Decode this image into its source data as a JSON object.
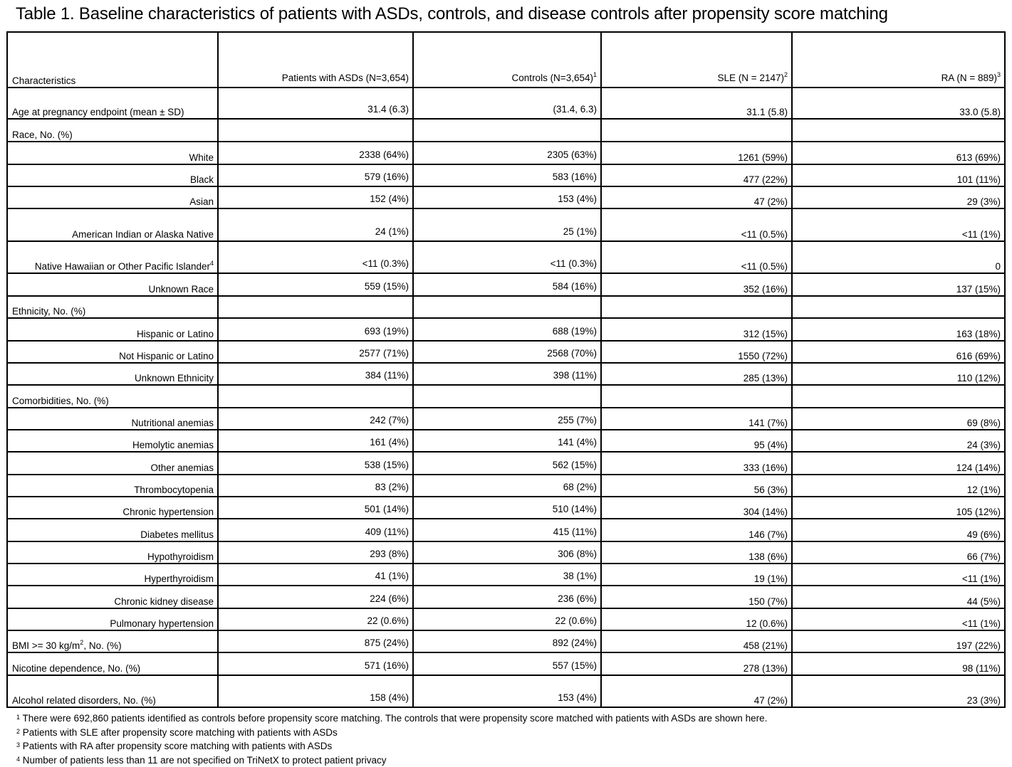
{
  "title": "Table 1. Baseline characteristics of patients with ASDs, controls, and disease controls after propensity score matching",
  "headers": [
    {
      "text": "Characteristics",
      "sup": ""
    },
    {
      "text": "Patients with ASDs (N=3,654)",
      "sup": ""
    },
    {
      "text": "Controls (N=3,654)",
      "sup": "1"
    },
    {
      "text": "SLE (N = 2147)",
      "sup": "2"
    },
    {
      "text": "RA (N = 889)",
      "sup": "3"
    }
  ],
  "rows": [
    {
      "label": "Age at pregnancy endpoint (mean ± SD)",
      "sup": "",
      "post": "",
      "sub": false,
      "values": [
        "31.4 (6.3)",
        "(31.4, 6.3)",
        "31.1 (5.8)",
        "33.0 (5.8)"
      ]
    },
    {
      "label": "Race, No. (%)",
      "sup": "",
      "post": "",
      "sub": false,
      "values": [
        "",
        "",
        "",
        ""
      ]
    },
    {
      "label": "White",
      "sup": "",
      "post": "",
      "sub": true,
      "values": [
        "2338 (64%)",
        "2305 (63%)",
        "1261 (59%)",
        "613 (69%)"
      ]
    },
    {
      "label": "Black",
      "sup": "",
      "post": "",
      "sub": true,
      "values": [
        "579 (16%)",
        "583 (16%)",
        "477 (22%)",
        "101 (11%)"
      ]
    },
    {
      "label": "Asian",
      "sup": "",
      "post": "",
      "sub": true,
      "values": [
        "152 (4%)",
        "153 (4%)",
        "47 (2%)",
        "29 (3%)"
      ]
    },
    {
      "label": "American Indian or Alaska Native",
      "sup": "",
      "post": "",
      "sub": true,
      "values": [
        "24 (1%)",
        "25 (1%)",
        "<11 (0.5%)",
        "<11 (1%)"
      ]
    },
    {
      "label": "Native Hawaiian or Other Pacific Islander",
      "sup": "4",
      "post": "",
      "sub": true,
      "values": [
        "<11 (0.3%)",
        "<11 (0.3%)",
        "<11 (0.5%)",
        "0"
      ]
    },
    {
      "label": "Unknown Race",
      "sup": "",
      "post": "",
      "sub": true,
      "values": [
        "559 (15%)",
        "584 (16%)",
        "352 (16%)",
        "137 (15%)"
      ]
    },
    {
      "label": "Ethnicity, No. (%)",
      "sup": "",
      "post": "",
      "sub": false,
      "values": [
        "",
        "",
        "",
        ""
      ]
    },
    {
      "label": "Hispanic or Latino",
      "sup": "",
      "post": "",
      "sub": true,
      "values": [
        "693 (19%)",
        "688 (19%)",
        "312 (15%)",
        "163 (18%)"
      ]
    },
    {
      "label": "Not Hispanic or Latino",
      "sup": "",
      "post": "",
      "sub": true,
      "values": [
        "2577 (71%)",
        "2568 (70%)",
        "1550 (72%)",
        "616 (69%)"
      ]
    },
    {
      "label": "Unknown Ethnicity",
      "sup": "",
      "post": "",
      "sub": true,
      "values": [
        "384 (11%)",
        "398 (11%)",
        "285 (13%)",
        "110 (12%)"
      ]
    },
    {
      "label": "Comorbidities, No. (%)",
      "sup": "",
      "post": "",
      "sub": false,
      "values": [
        "",
        "",
        "",
        ""
      ]
    },
    {
      "label": "Nutritional anemias",
      "sup": "",
      "post": "",
      "sub": true,
      "values": [
        "242 (7%)",
        "255 (7%)",
        "141 (7%)",
        "69 (8%)"
      ]
    },
    {
      "label": "Hemolytic anemias",
      "sup": "",
      "post": "",
      "sub": true,
      "values": [
        "161 (4%)",
        "141 (4%)",
        "95 (4%)",
        "24 (3%)"
      ]
    },
    {
      "label": "Other anemias",
      "sup": "",
      "post": "",
      "sub": true,
      "values": [
        "538 (15%)",
        "562 (15%)",
        "333 (16%)",
        "124 (14%)"
      ]
    },
    {
      "label": "Thrombocytopenia",
      "sup": "",
      "post": "",
      "sub": true,
      "values": [
        "83 (2%)",
        "68 (2%)",
        "56 (3%)",
        "12 (1%)"
      ]
    },
    {
      "label": "Chronic hypertension",
      "sup": "",
      "post": "",
      "sub": true,
      "values": [
        "501 (14%)",
        "510 (14%)",
        "304 (14%)",
        "105 (12%)"
      ]
    },
    {
      "label": "Diabetes mellitus",
      "sup": "",
      "post": "",
      "sub": true,
      "values": [
        "409 (11%)",
        "415 (11%)",
        "146 (7%)",
        "49 (6%)"
      ]
    },
    {
      "label": "Hypothyroidism",
      "sup": "",
      "post": "",
      "sub": true,
      "values": [
        "293 (8%)",
        "306 (8%)",
        "138 (6%)",
        "66 (7%)"
      ]
    },
    {
      "label": "Hyperthyroidism",
      "sup": "",
      "post": "",
      "sub": true,
      "values": [
        "41 (1%)",
        "38 (1%)",
        "19 (1%)",
        "<11 (1%)"
      ]
    },
    {
      "label": "Chronic kidney disease",
      "sup": "",
      "post": "",
      "sub": true,
      "values": [
        "224 (6%)",
        "236 (6%)",
        "150 (7%)",
        "44 (5%)"
      ]
    },
    {
      "label": "Pulmonary hypertension",
      "sup": "",
      "post": "",
      "sub": true,
      "values": [
        "22 (0.6%)",
        "22 (0.6%)",
        "12 (0.6%)",
        "<11 (1%)"
      ]
    },
    {
      "label": "BMI >= 30 kg/m",
      "sup": "2",
      "post": ", No. (%)",
      "sub": false,
      "values": [
        "875 (24%)",
        "892 (24%)",
        "458 (21%)",
        "197 (22%)"
      ]
    },
    {
      "label": "Nicotine dependence, No. (%)",
      "sup": "",
      "post": "",
      "sub": false,
      "values": [
        "571 (16%)",
        "557 (15%)",
        "278 (13%)",
        "98 (11%)"
      ]
    },
    {
      "label": "Alcohol related disorders, No. (%)",
      "sup": "",
      "post": "",
      "sub": false,
      "values": [
        "158 (4%)",
        "153 (4%)",
        "47 (2%)",
        "23 (3%)"
      ]
    }
  ],
  "footnotes": [
    {
      "sup": "1",
      "text": "There were 692,860 patients identified as controls before propensity score matching. The controls that were propensity score matched with patients with ASDs are shown here."
    },
    {
      "sup": "2",
      "text": "Patients with SLE after propensity score matching with patients with ASDs"
    },
    {
      "sup": "3",
      "text": "Patients with RA after propensity score matching with patients with ASDs"
    },
    {
      "sup": "4",
      "text": "Number of patients less than 11 are not specified on TriNetX to protect patient privacy"
    }
  ]
}
